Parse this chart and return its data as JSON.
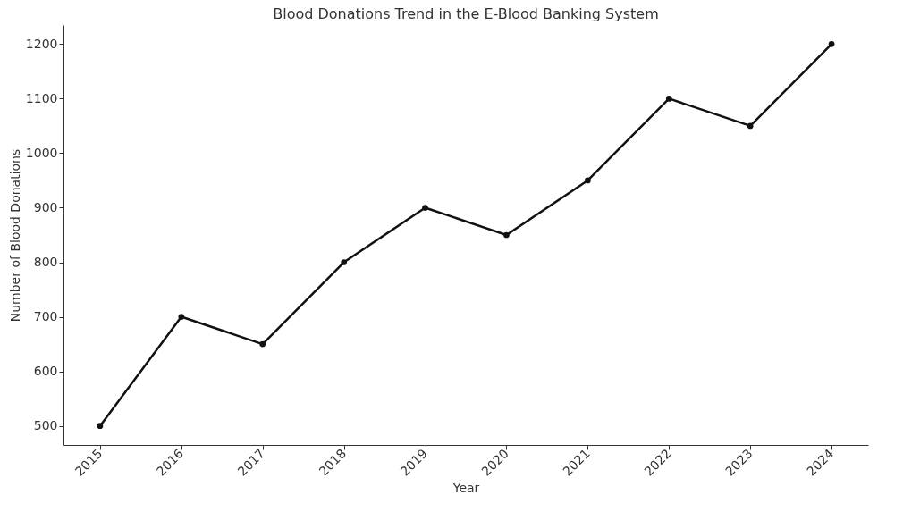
{
  "chart_data": {
    "type": "line",
    "title": "Blood Donations Trend in the E-Blood Banking System",
    "xlabel": "Year",
    "ylabel": "Number of Blood Donations",
    "categories": [
      "2015",
      "2016",
      "2017",
      "2018",
      "2019",
      "2020",
      "2021",
      "2022",
      "2023",
      "2024"
    ],
    "series": [
      {
        "color": "#111111",
        "values": [
          500,
          700,
          650,
          800,
          900,
          850,
          950,
          1100,
          1050,
          1200
        ]
      }
    ],
    "ylim": [
      465,
      1235
    ],
    "yticks": [
      500,
      600,
      700,
      800,
      900,
      1000,
      1100,
      1200
    ],
    "grid": false,
    "marker": "circle",
    "line_style": "solid"
  }
}
